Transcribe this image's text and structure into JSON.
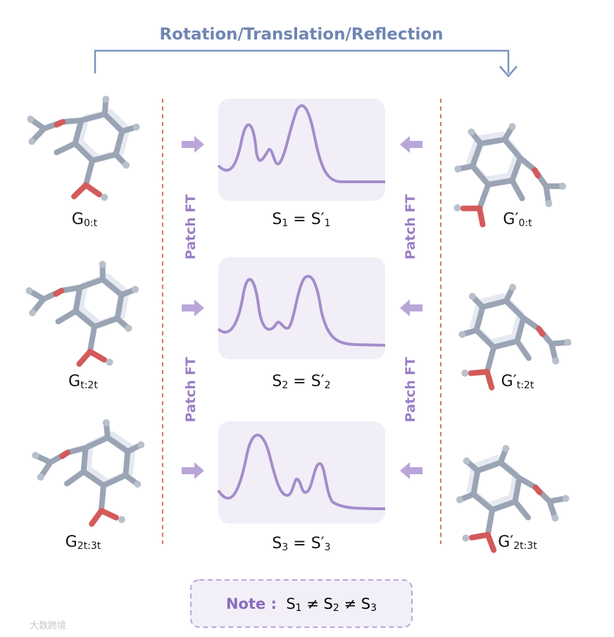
{
  "header": {
    "title": "Rotation/Translation/Reflection"
  },
  "left_graphs": [
    {
      "base": "G",
      "sub": "0:t"
    },
    {
      "base": "G",
      "sub": "t:2t"
    },
    {
      "base": "G",
      "sub": "2t:3t"
    }
  ],
  "right_graphs": [
    {
      "base": "G′",
      "sub": "0:t"
    },
    {
      "base": "G′",
      "sub": "t:2t"
    },
    {
      "base": "G′",
      "sub": "2t:3t"
    }
  ],
  "left_operation": [
    "Patch FT",
    "Patch FT"
  ],
  "right_operation": [
    "Patch FT",
    "Patch FT"
  ],
  "spectra": [
    {
      "left": "S",
      "left_sub": "1",
      "eq": " = ",
      "right": "S′",
      "right_sub": "1"
    },
    {
      "left": "S",
      "left_sub": "2",
      "eq": " = ",
      "right": "S′",
      "right_sub": "2"
    },
    {
      "left": "S",
      "left_sub": "3",
      "eq": " = ",
      "right": "S′",
      "right_sub": "3"
    }
  ],
  "note": {
    "label": "Note :",
    "sep": " ≠ ",
    "terms": [
      {
        "base": "S",
        "sub": "1"
      },
      {
        "base": "S",
        "sub": "2"
      },
      {
        "base": "S",
        "sub": "3"
      }
    ]
  },
  "watermark": "大数跨境"
}
